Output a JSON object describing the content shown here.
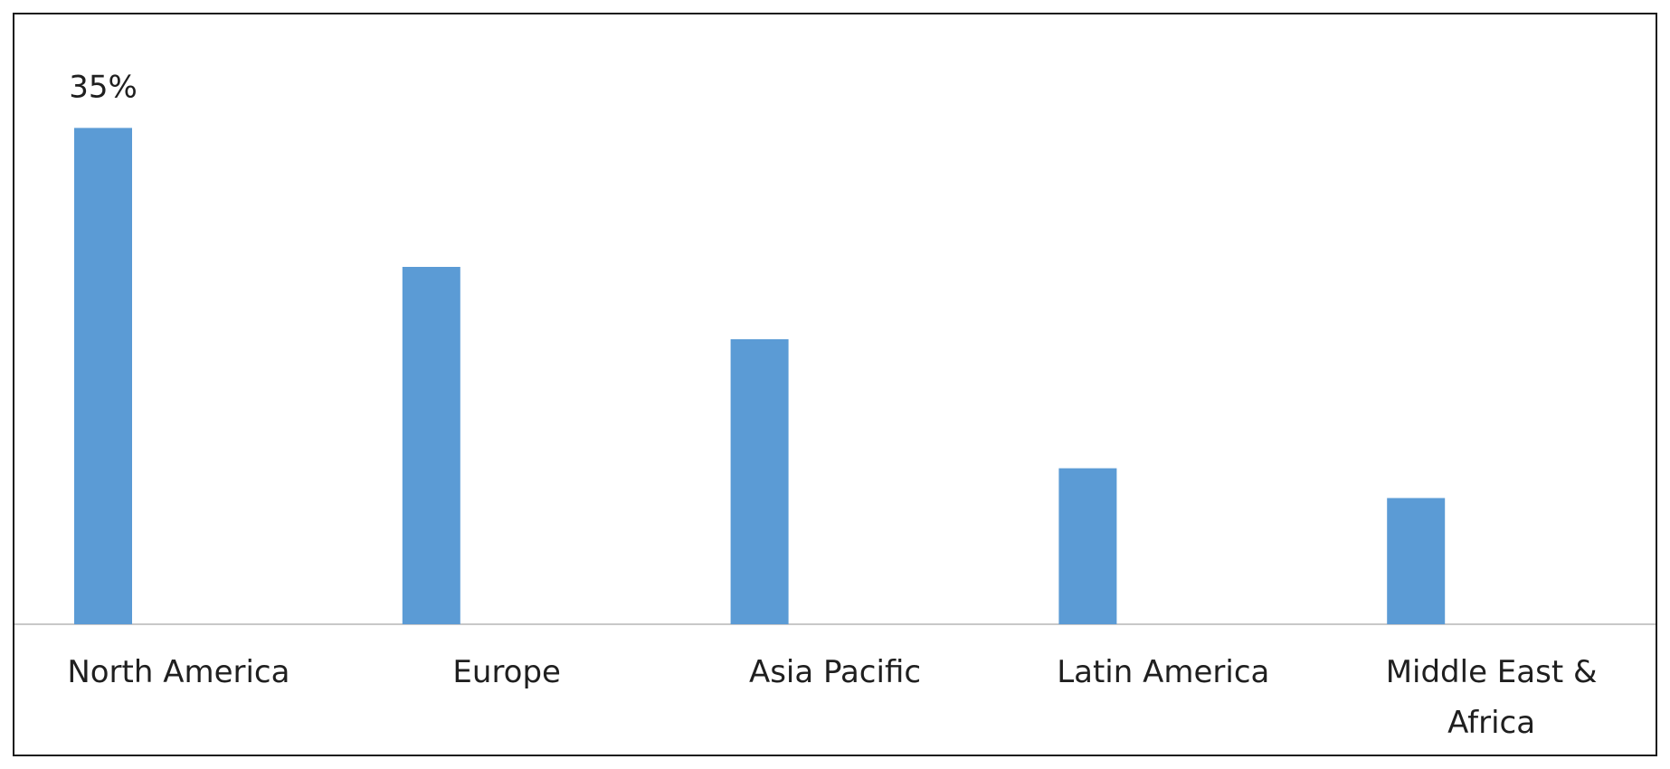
{
  "chart_data": {
    "type": "bar",
    "categories": [
      "North America",
      "Europe",
      "Asia Pacific",
      "Latin America",
      "Middle East  & Africa"
    ],
    "category_lines": [
      [
        "North America"
      ],
      [
        "Europe"
      ],
      [
        "Asia Pacific"
      ],
      [
        "Latin America"
      ],
      [
        "Middle East  &",
        "Africa"
      ]
    ],
    "values": [
      35,
      25.2,
      20.1,
      11,
      8.9
    ],
    "data_labels": [
      "35%",
      "",
      "",
      "",
      ""
    ],
    "title": "",
    "xlabel": "",
    "ylabel": "",
    "ylim": [
      0,
      43
    ],
    "grid": false,
    "legend": "none",
    "bar_color": "#5b9bd5",
    "axis_color": "#c8c8c8"
  }
}
